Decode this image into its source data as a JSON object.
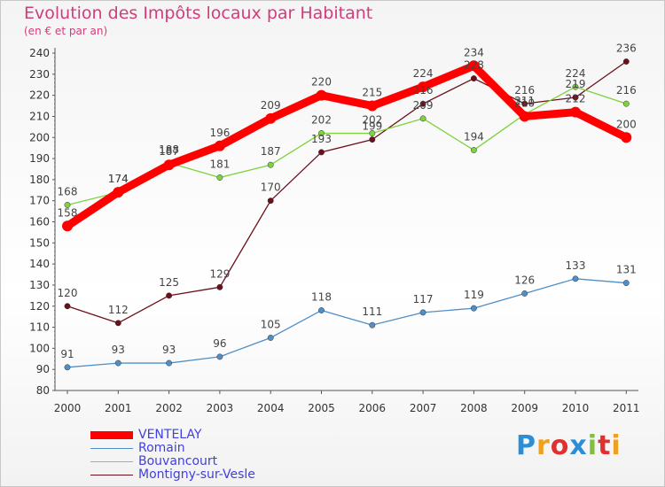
{
  "chart_data": {
    "type": "line",
    "title": "Evolution des Impôts locaux par Habitant",
    "subtitle": "(en € et par an)",
    "categories": [
      "2000",
      "2001",
      "2002",
      "2003",
      "2004",
      "2005",
      "2006",
      "2007",
      "2008",
      "2009",
      "2010",
      "2011"
    ],
    "ylim": [
      80,
      240
    ],
    "yticks": [
      80,
      90,
      100,
      110,
      120,
      130,
      140,
      150,
      160,
      170,
      180,
      190,
      200,
      210,
      220,
      230,
      240
    ],
    "grid": false,
    "legend_position": "bottom-left",
    "series": [
      {
        "name": "VENTELAY",
        "color": "#ff0000",
        "values": [
          158,
          174,
          187,
          196,
          209,
          220,
          215,
          224,
          234,
          210,
          212,
          200
        ]
      },
      {
        "name": "Romain",
        "color": "#4f8fc8",
        "values": [
          91,
          93,
          93,
          96,
          105,
          118,
          111,
          117,
          119,
          126,
          133,
          131
        ]
      },
      {
        "name": "Bouvancourt",
        "color": "#7ed23c",
        "values": [
          168,
          174,
          188,
          181,
          187,
          202,
          202,
          209,
          194,
          211,
          224,
          216
        ]
      },
      {
        "name": "Montigny-sur-Vesle",
        "color": "#6b0f1a",
        "values": [
          120,
          112,
          125,
          129,
          170,
          193,
          199,
          216,
          228,
          216,
          219,
          236
        ]
      }
    ]
  },
  "brand": {
    "letters": [
      "P",
      "r",
      "o",
      "x",
      "i",
      "t",
      "i"
    ],
    "colors": [
      "#2a8fd8",
      "#f0a020",
      "#e03030",
      "#2a8fd8",
      "#80c040",
      "#e03030",
      "#f0a020"
    ]
  }
}
